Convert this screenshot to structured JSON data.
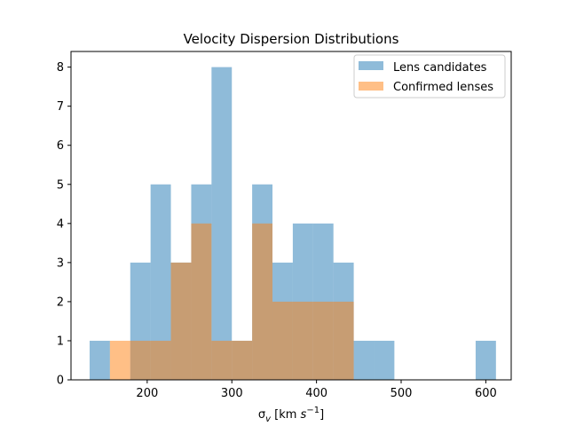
{
  "chart_data": {
    "type": "histogram",
    "title": "Velocity Dispersion Distributions",
    "xlabel": "σ_v [km s^-1]",
    "ylabel": "",
    "xlim": [
      110,
      630
    ],
    "ylim": [
      0,
      8.4
    ],
    "xticks": [
      200,
      300,
      400,
      500,
      600
    ],
    "yticks": [
      0,
      1,
      2,
      3,
      4,
      5,
      6,
      7,
      8
    ],
    "legend_position": "top-right",
    "series": [
      {
        "name": "Lens candidates",
        "color": "#1f77b4",
        "alpha": 0.5,
        "bins": [
          {
            "x0": 132,
            "x1": 156,
            "count": 1
          },
          {
            "x0": 156,
            "x1": 180,
            "count": 0
          },
          {
            "x0": 180,
            "x1": 204,
            "count": 3
          },
          {
            "x0": 204,
            "x1": 228,
            "count": 5
          },
          {
            "x0": 228,
            "x1": 252,
            "count": 3
          },
          {
            "x0": 252,
            "x1": 276,
            "count": 5
          },
          {
            "x0": 276,
            "x1": 300,
            "count": 8
          },
          {
            "x0": 300,
            "x1": 324,
            "count": 1
          },
          {
            "x0": 324,
            "x1": 348,
            "count": 5
          },
          {
            "x0": 348,
            "x1": 372,
            "count": 3
          },
          {
            "x0": 372,
            "x1": 396,
            "count": 4
          },
          {
            "x0": 396,
            "x1": 420,
            "count": 4
          },
          {
            "x0": 420,
            "x1": 444,
            "count": 3
          },
          {
            "x0": 444,
            "x1": 468,
            "count": 1
          },
          {
            "x0": 468,
            "x1": 492,
            "count": 1
          },
          {
            "x0": 492,
            "x1": 516,
            "count": 0
          },
          {
            "x0": 516,
            "x1": 540,
            "count": 0
          },
          {
            "x0": 540,
            "x1": 564,
            "count": 0
          },
          {
            "x0": 564,
            "x1": 588,
            "count": 0
          },
          {
            "x0": 588,
            "x1": 612,
            "count": 1
          }
        ]
      },
      {
        "name": "Confirmed lenses",
        "color": "#ff7f0e",
        "alpha": 0.5,
        "bins": [
          {
            "x0": 156,
            "x1": 180,
            "count": 1
          },
          {
            "x0": 180,
            "x1": 204,
            "count": 1
          },
          {
            "x0": 204,
            "x1": 228,
            "count": 1
          },
          {
            "x0": 228,
            "x1": 252,
            "count": 3
          },
          {
            "x0": 252,
            "x1": 276,
            "count": 4
          },
          {
            "x0": 276,
            "x1": 300,
            "count": 1
          },
          {
            "x0": 300,
            "x1": 324,
            "count": 1
          },
          {
            "x0": 324,
            "x1": 348,
            "count": 4
          },
          {
            "x0": 348,
            "x1": 372,
            "count": 2
          },
          {
            "x0": 372,
            "x1": 396,
            "count": 2
          },
          {
            "x0": 396,
            "x1": 420,
            "count": 2
          },
          {
            "x0": 420,
            "x1": 444,
            "count": 2
          }
        ]
      }
    ]
  }
}
